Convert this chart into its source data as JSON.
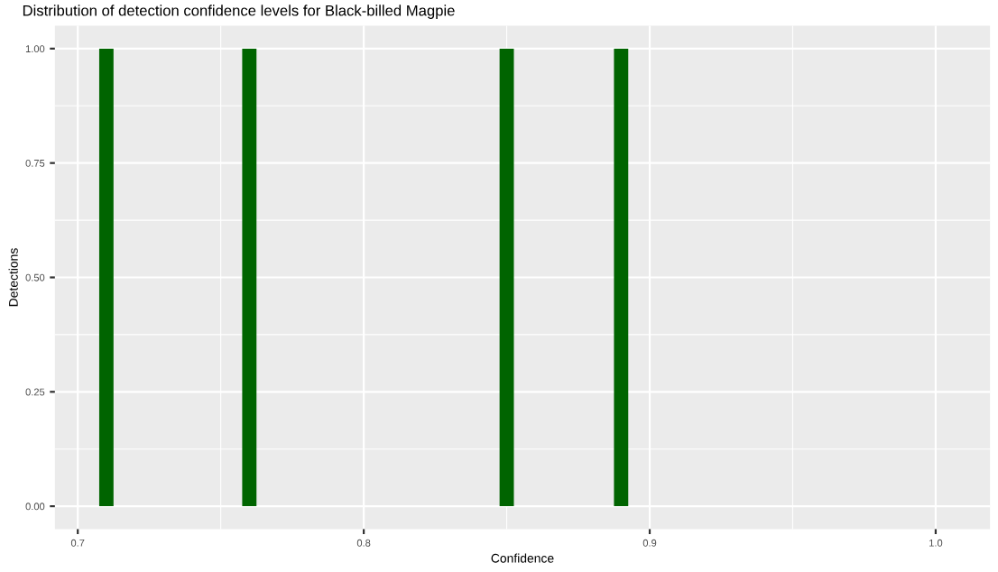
{
  "chart_data": {
    "type": "histogram",
    "title": "Distribution of detection confidence levels for Black-billed Magpie",
    "xlabel": "Confidence",
    "ylabel": "Detections",
    "bins": [
      0.7075,
      0.7125,
      0.7175,
      0.7225,
      0.7275,
      0.7325,
      0.7375,
      0.7425,
      0.7475,
      0.7525,
      0.7575,
      0.7625,
      0.7675,
      0.7725,
      0.7775,
      0.7825,
      0.7875,
      0.7925,
      0.7975,
      0.8025,
      0.8075,
      0.8125,
      0.8175,
      0.8225,
      0.8275,
      0.8325,
      0.8375,
      0.8425,
      0.8475,
      0.8525,
      0.8575,
      0.8625,
      0.8675,
      0.8725,
      0.8775,
      0.8825,
      0.8875,
      0.8925
    ],
    "values": [
      1,
      0,
      0,
      0,
      0,
      0,
      0,
      0,
      0,
      0,
      1,
      0,
      0,
      0,
      0,
      0,
      0,
      0,
      0,
      0,
      0,
      0,
      0,
      0,
      0,
      0,
      0,
      0,
      1,
      0,
      0,
      0,
      0,
      0,
      0,
      0,
      1
    ],
    "color": "#006400",
    "xlim": [
      0.692,
      1.019
    ],
    "xticks": [
      {
        "value": 0.7,
        "label": "0.7"
      },
      {
        "value": 0.8,
        "label": "0.8"
      },
      {
        "value": 0.9,
        "label": "0.9"
      },
      {
        "value": 1.0,
        "label": "1.0"
      }
    ],
    "ylim": [
      -0.05,
      1.05
    ],
    "yticks": [
      {
        "value": 0,
        "label": "0.00"
      },
      {
        "value": 0.25,
        "label": "0.25"
      },
      {
        "value": 0.5,
        "label": "0.50"
      },
      {
        "value": 0.75,
        "label": "0.75"
      },
      {
        "value": 1.0,
        "label": "1.00"
      }
    ],
    "grid": true
  }
}
